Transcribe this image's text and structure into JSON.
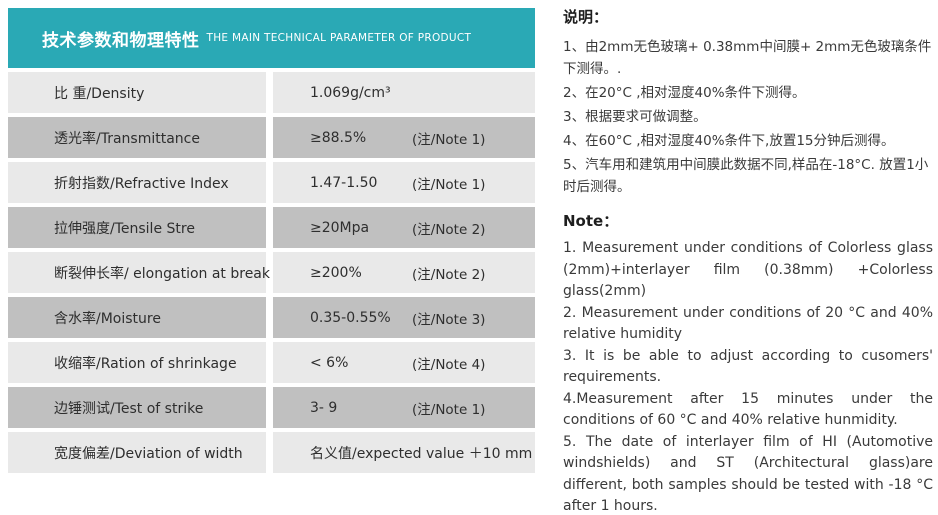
{
  "colors": {
    "header_bg": "#2aa9b5",
    "header_text": "#ffffff",
    "row_light": "#e9e9e9",
    "row_dark": "#c0c0c0"
  },
  "table": {
    "header": {
      "title_zh": "技术参数和物理特性",
      "title_en": "THE MAIN TECHNICAL PARAMETER OF PRODUCT"
    },
    "rows": [
      {
        "label": "比 重/Density",
        "value": "1.069g/cm³",
        "note": ""
      },
      {
        "label": "透光率/Transmittance",
        "value": "≥88.5%",
        "note": "(注/Note 1)"
      },
      {
        "label": "折射指数/Refractive Index",
        "value": "1.47-1.50",
        "note": "(注/Note 1)"
      },
      {
        "label": "拉伸强度/Tensile Stre",
        "value": "≥20Mpa",
        "note": "(注/Note 2)"
      },
      {
        "label": "断裂伸长率/ elongation at break",
        "value": "≥200%",
        "note": "(注/Note 2)"
      },
      {
        "label": "含水率/Moisture",
        "value": "0.35-0.55%",
        "note": "(注/Note 3)"
      },
      {
        "label": "收缩率/Ration of shrinkage",
        "value": "< 6%",
        "note": "(注/Note 4)"
      },
      {
        "label": "边锤测试/Test of strike",
        "value": "3- 9",
        "note": "(注/Note 1)"
      },
      {
        "label": "宽度偏差/Deviation of width",
        "value": "名义值/expected value ＋10 mm",
        "note": ""
      }
    ]
  },
  "notes_cn": {
    "heading": "说明：",
    "items": [
      "1、由2mm无色玻璃+ 0.38mm中间膜+ 2mm无色玻璃条件下测得。.",
      "2、在20°C ,相对湿度40%条件下测得。",
      "3、根据要求可做调整。",
      "4、在60°C ,相对湿度40%条件下,放置15分钟后测得。",
      "5、汽车用和建筑用中间膜此数据不同,样品在-18°C. 放置1小时后测得。"
    ]
  },
  "notes_en": {
    "heading": "Note：",
    "items": [
      "1. Measurement under conditions of Colorless glass (2mm)+interlayer film (0.38mm) +Colorless glass(2mm)",
      "2. Measurement under conditions of 20 °C and 40% relative humidity",
      "3. It is be able to adjust according to cusomers' requirements.",
      "4.Measurement after 15 minutes under the conditions of 60 °C and 40% relative hunmidity.",
      "5. The date of interlayer film of HI (Automotive windshields) and ST (Architectural glass)are different, both samples should be tested with -18 °C after 1 hours."
    ]
  }
}
